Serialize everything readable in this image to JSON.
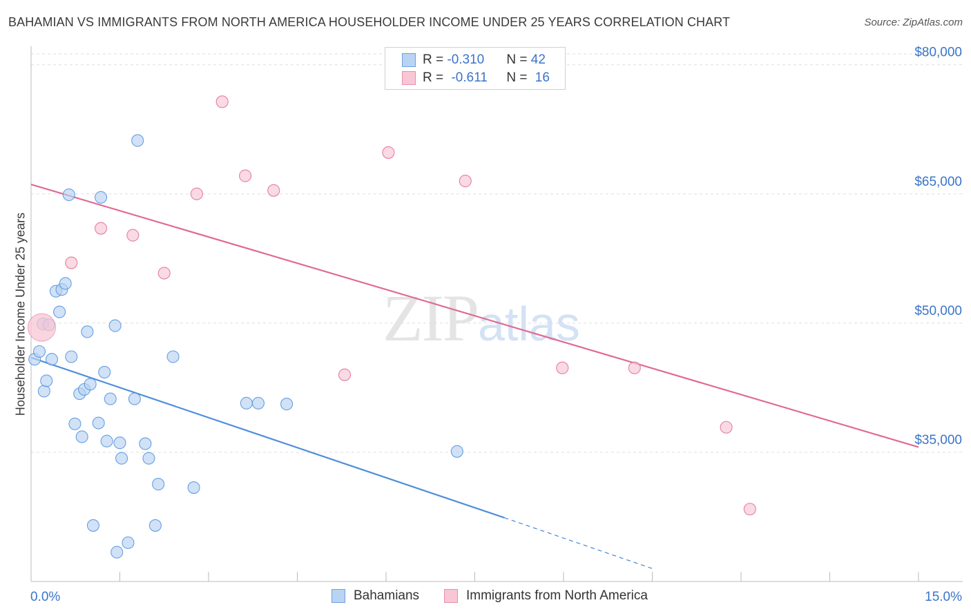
{
  "title": "BAHAMIAN VS IMMIGRANTS FROM NORTH AMERICA HOUSEHOLDER INCOME UNDER 25 YEARS CORRELATION CHART",
  "source": "Source: ZipAtlas.com",
  "watermark": {
    "zip": "ZIP",
    "atlas": "atlas"
  },
  "legend": {
    "rows": [
      {
        "r_label": "R = ",
        "r_value": "-0.310",
        "n_label": "N = ",
        "n_value": "42",
        "color": "#b9d3f3"
      },
      {
        "r_label": "R = ",
        "r_value": "-0.611",
        "n_label": "N = ",
        "n_value": "16",
        "color": "#f8c6d4"
      }
    ]
  },
  "bottom_legend": {
    "bahamians": "Bahamians",
    "immigrants": "Immigrants from North America"
  },
  "chart_data": {
    "type": "scatter",
    "title": "BAHAMIAN VS IMMIGRANTS FROM NORTH AMERICA HOUSEHOLDER INCOME UNDER 25 YEARS CORRELATION CHART",
    "xlabel": "",
    "ylabel": "Householder Income Under 25 years",
    "xlim": [
      0,
      15
    ],
    "ylim": [
      20000,
      81500
    ],
    "x_tick_labels": [
      "0.0%",
      "15.0%"
    ],
    "y_ticks": [
      35000,
      50000,
      65000,
      80000
    ],
    "y_tick_labels": [
      "$35,000",
      "$50,000",
      "$65,000",
      "$80,000"
    ],
    "grid": true,
    "series": [
      {
        "name": "Bahamians",
        "color": "#4f8fdc",
        "fill": "#b9d3f3",
        "points": [
          [
            0.06,
            45.8
          ],
          [
            0.14,
            46.7
          ],
          [
            0.2,
            49.9
          ],
          [
            0.22,
            42.1
          ],
          [
            0.26,
            43.3
          ],
          [
            0.3,
            49.8
          ],
          [
            0.35,
            45.8
          ],
          [
            0.42,
            53.7
          ],
          [
            0.48,
            51.3
          ],
          [
            0.52,
            53.9
          ],
          [
            0.58,
            54.6
          ],
          [
            0.64,
            64.9
          ],
          [
            0.68,
            46.1
          ],
          [
            0.74,
            38.3
          ],
          [
            0.82,
            41.8
          ],
          [
            0.86,
            36.8
          ],
          [
            0.9,
            42.3
          ],
          [
            0.95,
            49.0
          ],
          [
            1.0,
            42.9
          ],
          [
            1.05,
            26.5
          ],
          [
            1.14,
            38.4
          ],
          [
            1.18,
            64.6
          ],
          [
            1.24,
            44.3
          ],
          [
            1.28,
            36.3
          ],
          [
            1.34,
            41.2
          ],
          [
            1.42,
            49.7
          ],
          [
            1.45,
            23.4
          ],
          [
            1.5,
            36.1
          ],
          [
            1.53,
            34.3
          ],
          [
            1.64,
            24.5
          ],
          [
            1.75,
            41.2
          ],
          [
            1.8,
            71.2
          ],
          [
            1.93,
            36.0
          ],
          [
            1.99,
            34.3
          ],
          [
            2.1,
            26.5
          ],
          [
            2.15,
            31.3
          ],
          [
            2.4,
            46.1
          ],
          [
            2.75,
            30.9
          ],
          [
            3.64,
            40.7
          ],
          [
            3.84,
            40.7
          ],
          [
            4.32,
            40.6
          ],
          [
            7.2,
            35.1
          ]
        ],
        "trend": {
          "x0": 0,
          "y0": 46.0,
          "x1": 8.0,
          "y1": 27.4,
          "dashed_to_x": 10.5,
          "dashed_to_y": 21.5
        }
      },
      {
        "name": "Immigrants from North America",
        "color": "#e06a92",
        "fill": "#f8c6d4",
        "points": [
          [
            0.18,
            49.5
          ],
          [
            0.68,
            57.0
          ],
          [
            1.18,
            61.0
          ],
          [
            1.72,
            60.2
          ],
          [
            2.25,
            55.8
          ],
          [
            2.8,
            65.0
          ],
          [
            3.23,
            75.7
          ],
          [
            3.62,
            67.1
          ],
          [
            4.1,
            65.4
          ],
          [
            5.3,
            44.0
          ],
          [
            6.04,
            69.8
          ],
          [
            7.34,
            66.5
          ],
          [
            8.98,
            44.8
          ],
          [
            10.2,
            44.8
          ],
          [
            11.75,
            37.9
          ],
          [
            12.15,
            28.4
          ]
        ],
        "big_point_index": 0,
        "trend": {
          "x0": 0,
          "y0": 66.1,
          "x1": 15.0,
          "y1": 35.6
        }
      }
    ]
  }
}
